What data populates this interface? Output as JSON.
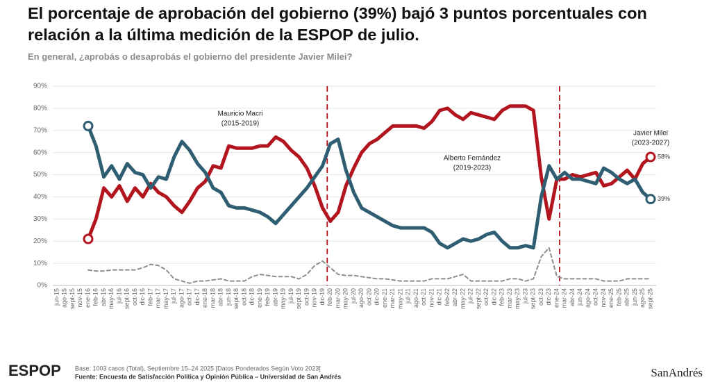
{
  "chart_data": {
    "type": "line",
    "title": "El porcentaje de aprobación del gobierno (39%) bajó 3 puntos porcentuales con relación a la última medición de la ESPOP de julio.",
    "subtitle": "En general, ¿aprobás o desaprobás el gobierno del presidente Javier Milei?",
    "categories": [
      "jun-15",
      "ago-15",
      "sept-15",
      "nov-15",
      "ene-16",
      "feb-16",
      "abr-16",
      "may-16",
      "jul-16",
      "sept-16",
      "oct-16",
      "dic-16",
      "feb-17",
      "mar-17",
      "may-17",
      "jul-17",
      "ago-17",
      "oct-17",
      "dic-17",
      "ene-18",
      "mar-18",
      "abr-18",
      "jun-18",
      "sept-18",
      "oct-18",
      "dic-18",
      "ene-19",
      "feb-19",
      "abr-19",
      "may-19",
      "jul-19",
      "sept-19",
      "oct-19",
      "nov-19",
      "dic-19",
      "feb-20",
      "mar-20",
      "may-20",
      "jul-20",
      "ago-20",
      "oct-20",
      "dic-20",
      "ene-21",
      "mar-21",
      "may-21",
      "jul-21",
      "ago-21",
      "oct-21",
      "nov-21",
      "dic-21",
      "feb-22",
      "abr-22",
      "may-22",
      "jul-22",
      "sept-22",
      "oct-22",
      "dic-22",
      "feb-23",
      "mar-23",
      "may-23",
      "jul-23",
      "sept-23",
      "oct-23",
      "dic-23",
      "ene-24",
      "mar-24",
      "abr-24",
      "jun-24",
      "ago-24",
      "oct-24",
      "nov-24",
      "ene-25",
      "feb-25",
      "abr-25",
      "jun-25",
      "ago-25",
      "sept-25"
    ],
    "series": [
      {
        "color": "#b3151f",
        "values": [
          null,
          null,
          null,
          null,
          21,
          30,
          44,
          40,
          45,
          38,
          44,
          40,
          46,
          42,
          40,
          36,
          33,
          38,
          44,
          47,
          54,
          53,
          63,
          62,
          62,
          62,
          63,
          63,
          67,
          65,
          61,
          58,
          53,
          45,
          35,
          29,
          33,
          45,
          53,
          60,
          64,
          66,
          69,
          72,
          72,
          72,
          72,
          71,
          74,
          79,
          80,
          77,
          75,
          78,
          77,
          76,
          75,
          79,
          81,
          81,
          81,
          79,
          49,
          30,
          48,
          48,
          50,
          49,
          50,
          51,
          45,
          46,
          49,
          52,
          48,
          55,
          58
        ],
        "value_labels": [
          null,
          null,
          null,
          null,
          null,
          null,
          null,
          null,
          null,
          null,
          null,
          null,
          null,
          null,
          null,
          null,
          null,
          null,
          null,
          null,
          null,
          null,
          null,
          null,
          null,
          null,
          null,
          null,
          null,
          null,
          null,
          null,
          null,
          null,
          null,
          null,
          null,
          null,
          null,
          null,
          null,
          null,
          null,
          null,
          null,
          null,
          null,
          null,
          null,
          null,
          null,
          null,
          null,
          null,
          null,
          null,
          null,
          null,
          null,
          null,
          null,
          null,
          null,
          null,
          null,
          null,
          null,
          null,
          null,
          null,
          null,
          null,
          null,
          null,
          null,
          null,
          "58%"
        ]
      },
      {
        "color": "#2f5e72",
        "values": [
          null,
          null,
          null,
          null,
          72,
          63,
          49,
          54,
          48,
          55,
          51,
          50,
          44,
          49,
          48,
          58,
          65,
          61,
          55,
          51,
          44,
          42,
          36,
          35,
          35,
          34,
          33,
          31,
          28,
          32,
          36,
          40,
          44,
          49,
          54,
          64,
          66,
          52,
          42,
          35,
          33,
          31,
          29,
          27,
          26,
          26,
          26,
          26,
          24,
          19,
          17,
          19,
          21,
          20,
          21,
          23,
          24,
          20,
          17,
          17,
          18,
          17,
          40,
          54,
          48,
          51,
          48,
          48,
          47,
          46,
          53,
          51,
          48,
          46,
          48,
          42,
          39
        ],
        "value_labels": [
          null,
          null,
          null,
          null,
          null,
          null,
          null,
          null,
          null,
          null,
          null,
          null,
          null,
          null,
          null,
          null,
          null,
          null,
          null,
          null,
          null,
          null,
          null,
          null,
          null,
          null,
          null,
          null,
          null,
          null,
          null,
          null,
          null,
          null,
          null,
          null,
          null,
          null,
          null,
          null,
          null,
          null,
          null,
          null,
          null,
          null,
          null,
          null,
          null,
          null,
          null,
          null,
          null,
          null,
          null,
          null,
          null,
          null,
          null,
          null,
          null,
          null,
          null,
          null,
          null,
          null,
          null,
          null,
          null,
          null,
          null,
          null,
          null,
          null,
          null,
          null,
          "39%"
        ]
      },
      {
        "color": "#8e8e8e",
        "dashed": true,
        "values": [
          null,
          null,
          null,
          null,
          7,
          6.5,
          6.5,
          7,
          7,
          7,
          7,
          8,
          9.5,
          9,
          7,
          3,
          2,
          1,
          2,
          2,
          2.5,
          3,
          2,
          2,
          2,
          4,
          5,
          4.5,
          4,
          4,
          4,
          3,
          5,
          9,
          11,
          8,
          5,
          4.5,
          4.5,
          4,
          3.5,
          3,
          3,
          2.5,
          2,
          2,
          2,
          2,
          3,
          3,
          3,
          4,
          5,
          2,
          2,
          2,
          2,
          2,
          3,
          3,
          2,
          3,
          13,
          17,
          4,
          3,
          3,
          3,
          3,
          3,
          2,
          2,
          2,
          3,
          3,
          3,
          3
        ]
      }
    ],
    "ylim": [
      0,
      90
    ],
    "yticks": [
      {
        "value": 0,
        "label": "0%"
      },
      {
        "value": 10,
        "label": "10%"
      },
      {
        "value": 20,
        "label": "20%"
      },
      {
        "value": 30,
        "label": "30%"
      },
      {
        "value": 40,
        "label": "40%"
      },
      {
        "value": 50,
        "label": "50%"
      },
      {
        "value": 60,
        "label": "60%"
      },
      {
        "value": 70,
        "label": "70%"
      },
      {
        "value": 80,
        "label": "80%"
      },
      {
        "value": 90,
        "label": "90%"
      }
    ],
    "grid": true,
    "annotations": [
      [
        "Mauricio Macri",
        "(2015-2019)"
      ],
      [
        "Alberto Fernández",
        "(2019-2023)"
      ],
      [
        "Javier Milei",
        "(2023-2027)"
      ]
    ]
  },
  "footer": {
    "logo": "ESPOP",
    "base": "Base: 1003 casos (Total), Septiembre 15–24 2025 [Datos Ponderados Según Voto 2023]",
    "source": "Fuente: Encuesta de Satisfacción Política y Opinión Pública – Universidad de San Andrés",
    "university": "SanAndrés"
  }
}
